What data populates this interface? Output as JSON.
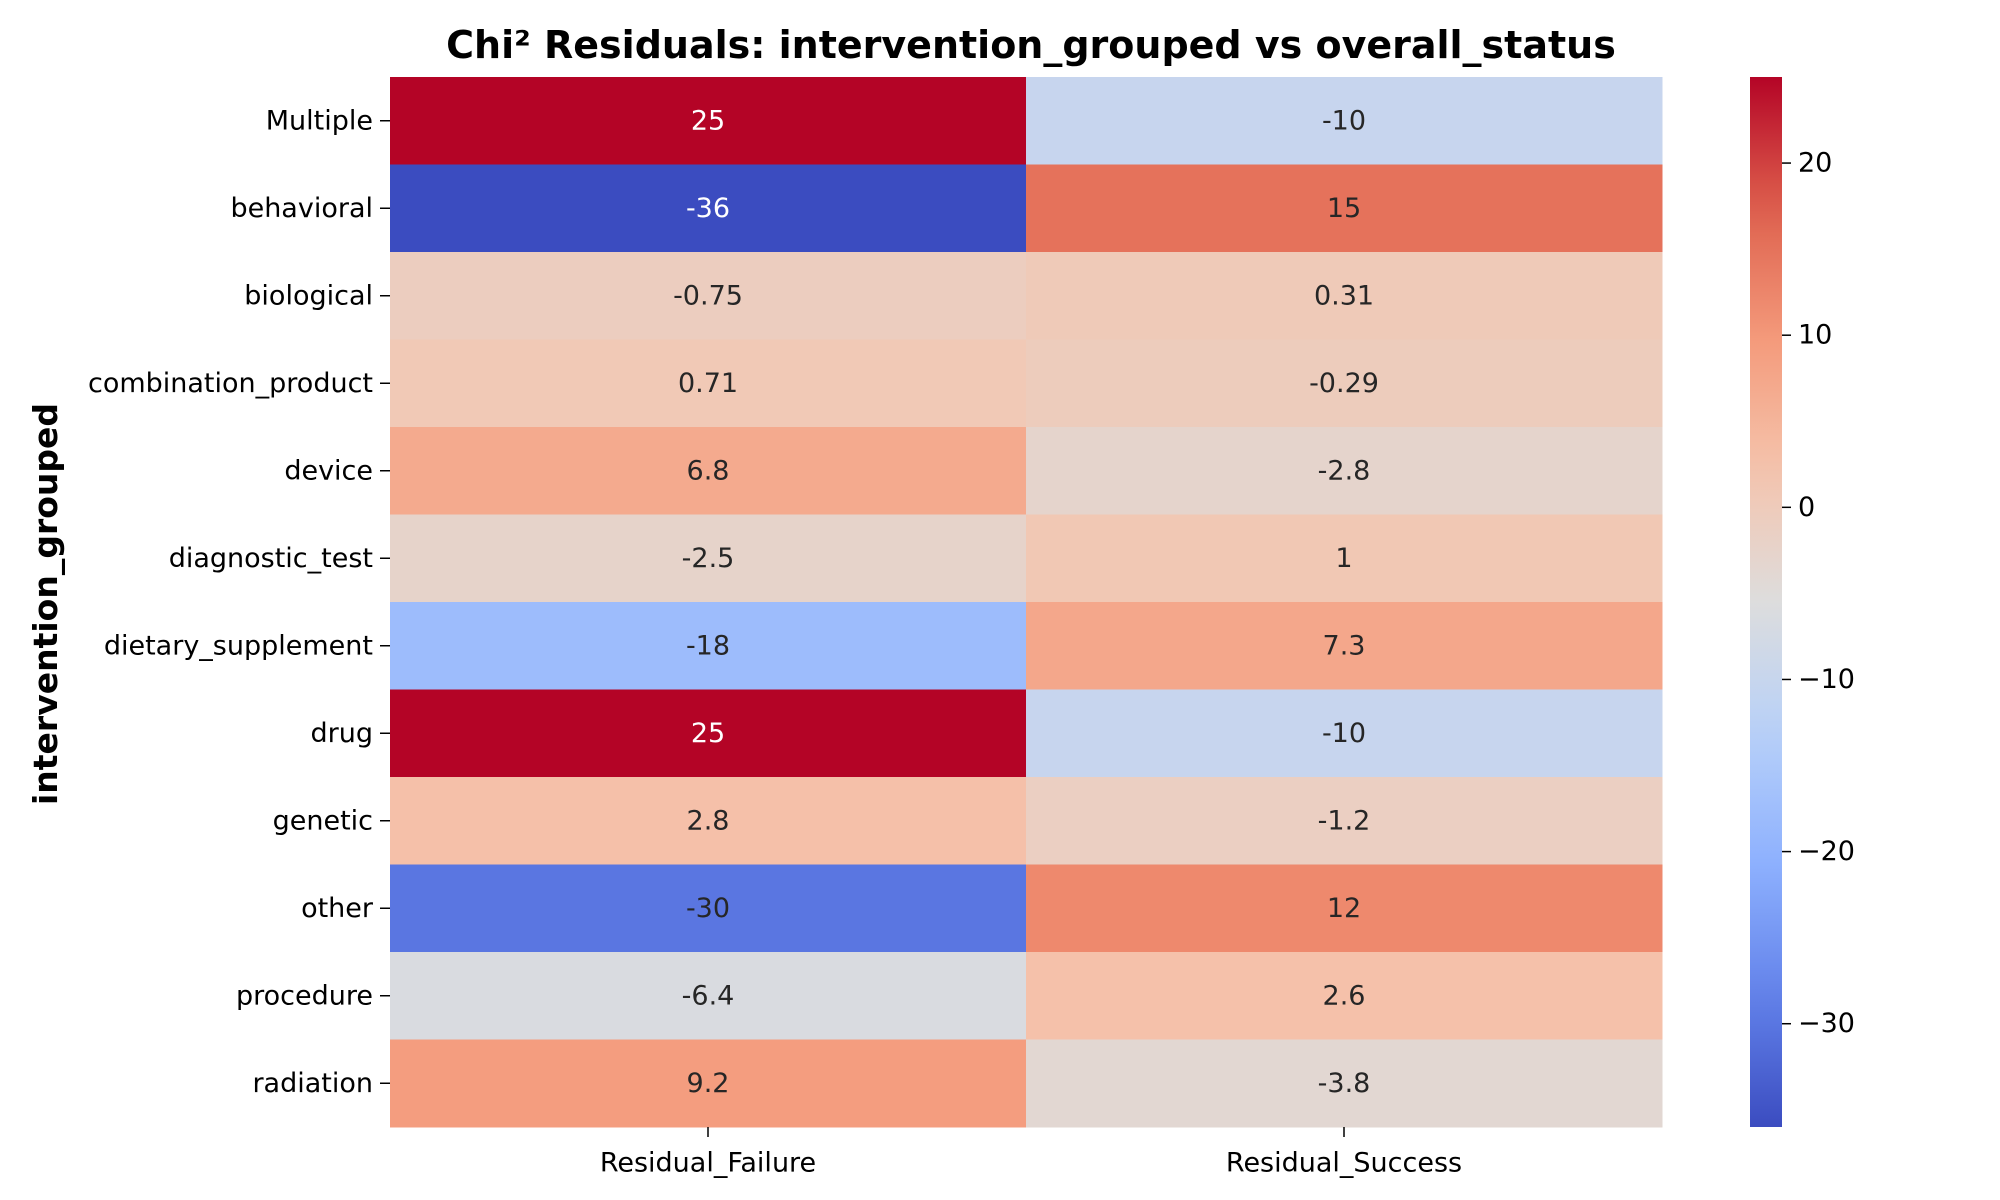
{
  "chart_data": {
    "type": "heatmap",
    "title": "Chi² Residuals: intervention_grouped vs overall_status",
    "ylabel": "intervention_grouped",
    "xlabel": "",
    "columns": [
      "Residual_Failure",
      "Residual_Success"
    ],
    "rows": [
      "Multiple",
      "behavioral",
      "biological",
      "combination_product",
      "device",
      "diagnostic_test",
      "dietary_supplement",
      "drug",
      "genetic",
      "other",
      "procedure",
      "radiation"
    ],
    "values": [
      [
        25,
        -10
      ],
      [
        -36,
        15
      ],
      [
        -0.75,
        0.31
      ],
      [
        0.71,
        -0.29
      ],
      [
        6.8,
        -2.8
      ],
      [
        -2.5,
        1
      ],
      [
        -18,
        7.3
      ],
      [
        25,
        -10
      ],
      [
        2.8,
        -1.2
      ],
      [
        -30,
        12
      ],
      [
        -6.4,
        2.6
      ],
      [
        9.2,
        -3.8
      ]
    ],
    "cell_labels": [
      [
        "25",
        "-10"
      ],
      [
        "-36",
        "15"
      ],
      [
        "-0.75",
        "0.31"
      ],
      [
        "0.71",
        "-0.29"
      ],
      [
        "6.8",
        "-2.8"
      ],
      [
        "-2.5",
        "1"
      ],
      [
        "-18",
        "7.3"
      ],
      [
        "25",
        "-10"
      ],
      [
        "2.8",
        "-1.2"
      ],
      [
        "-30",
        "12"
      ],
      [
        "-6.4",
        "2.6"
      ],
      [
        "9.2",
        "-3.8"
      ]
    ],
    "colormap": "coolwarm",
    "vmin": -36,
    "vmax": 25,
    "colorbar_ticks": [
      20,
      10,
      0,
      -10,
      -20,
      -30
    ],
    "colorbar_tick_labels": [
      "20",
      "10",
      "0",
      "−10",
      "−20",
      "−30"
    ],
    "colorbar_placement": "right"
  }
}
